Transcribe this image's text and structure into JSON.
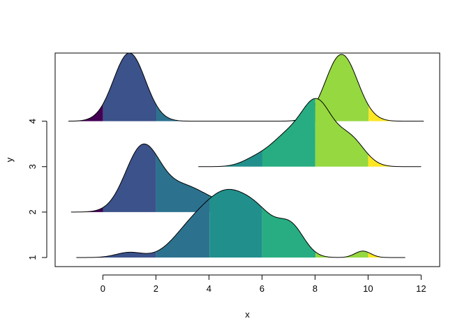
{
  "chart_data": {
    "type": "area",
    "title": "",
    "xlabel": "x",
    "ylabel": "y",
    "xlim": [
      -1.8,
      12.7
    ],
    "ylim": [
      0.8,
      5.5
    ],
    "xticks": [
      0,
      2,
      4,
      6,
      8,
      10,
      12
    ],
    "yticks": [
      1,
      2,
      3,
      4
    ],
    "grid": false,
    "legend": "none",
    "ridge_height": 1.5,
    "bins": {
      "edges": [
        0,
        2,
        4,
        6,
        8,
        10
      ],
      "colors": [
        "#440154",
        "#3B528B",
        "#21908C",
        "#2C728E",
        "#5DC863",
        "#FDE725",
        "#27AD81",
        "#7AD151"
      ],
      "fill_sequence": [
        "#440154",
        "#3B528B",
        "#2C728E",
        "#21908C",
        "#27AD81",
        "#95D840",
        "#FDE725"
      ]
    },
    "series": [
      {
        "name": "",
        "y": 1,
        "range": [
          -1.0,
          11.4
        ],
        "components": [
          {
            "mu": 1.0,
            "sd": 0.5,
            "w": 0.08
          },
          {
            "mu": 4.7,
            "sd": 0.95,
            "w": 1.0
          },
          {
            "mu": 3.2,
            "sd": 0.7,
            "w": 0.28
          },
          {
            "mu": 7.1,
            "sd": 0.5,
            "w": 0.45
          },
          {
            "mu": 6.0,
            "sd": 0.6,
            "w": 0.35
          },
          {
            "mu": 9.8,
            "sd": 0.3,
            "w": 0.1
          }
        ]
      },
      {
        "name": "",
        "y": 2,
        "range": [
          -1.2,
          6.2
        ],
        "components": [
          {
            "mu": 1.5,
            "sd": 0.65,
            "w": 1.0
          },
          {
            "mu": 3.1,
            "sd": 0.8,
            "w": 0.38
          },
          {
            "mu": 4.5,
            "sd": 0.6,
            "w": 0.08
          }
        ]
      },
      {
        "name": "",
        "y": 3,
        "range": [
          3.6,
          12.0
        ],
        "components": [
          {
            "mu": 8.1,
            "sd": 0.55,
            "w": 1.0
          },
          {
            "mu": 7.0,
            "sd": 0.7,
            "w": 0.55
          },
          {
            "mu": 9.3,
            "sd": 0.55,
            "w": 0.5
          },
          {
            "mu": 5.7,
            "sd": 0.5,
            "w": 0.1
          }
        ]
      },
      {
        "name": "",
        "y": 4,
        "range": [
          -1.3,
          12.1
        ],
        "components": [
          {
            "mu": 1.0,
            "sd": 0.6,
            "w": 1.0
          },
          {
            "mu": 9.0,
            "sd": 0.6,
            "w": 0.98
          }
        ]
      }
    ]
  }
}
